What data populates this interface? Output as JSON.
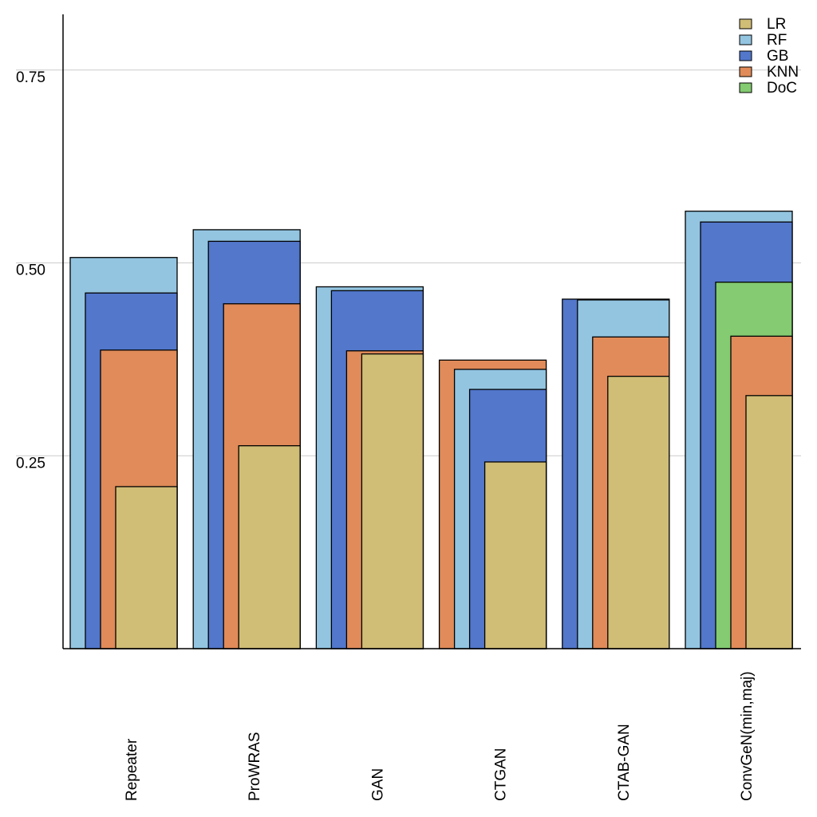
{
  "chart_data": {
    "type": "bar",
    "style": "nested-overlapping",
    "title": "",
    "xlabel": "",
    "ylabel": "",
    "ylim": [
      0,
      0.82
    ],
    "yticks": [
      0.25,
      0.5,
      0.75
    ],
    "ytick_labels": [
      "0.25",
      "0.50",
      "0.75"
    ],
    "grid": "horizontal",
    "legend_position": "top-right",
    "categories": [
      "Repeater",
      "ProWRAS",
      "GAN",
      "CTGAN",
      "CTAB-GAN",
      "ConvGeN(min,maj)"
    ],
    "series": [
      {
        "name": "LR",
        "color": "#D0BD76",
        "values": [
          0.21,
          0.263,
          0.382,
          0.242,
          0.353,
          0.328
        ]
      },
      {
        "name": "RF",
        "color": "#93C5E1",
        "values": [
          0.507,
          0.543,
          0.469,
          0.362,
          0.452,
          0.567
        ]
      },
      {
        "name": "GB",
        "color": "#5277CB",
        "values": [
          0.461,
          0.528,
          0.464,
          0.336,
          0.453,
          0.553
        ]
      },
      {
        "name": "KNN",
        "color": "#E08B59",
        "values": [
          0.387,
          0.447,
          0.386,
          0.374,
          0.404,
          0.405
        ]
      },
      {
        "name": "DoC",
        "color": "#84CB71",
        "values": [
          null,
          null,
          null,
          null,
          null,
          0.475
        ]
      }
    ]
  }
}
